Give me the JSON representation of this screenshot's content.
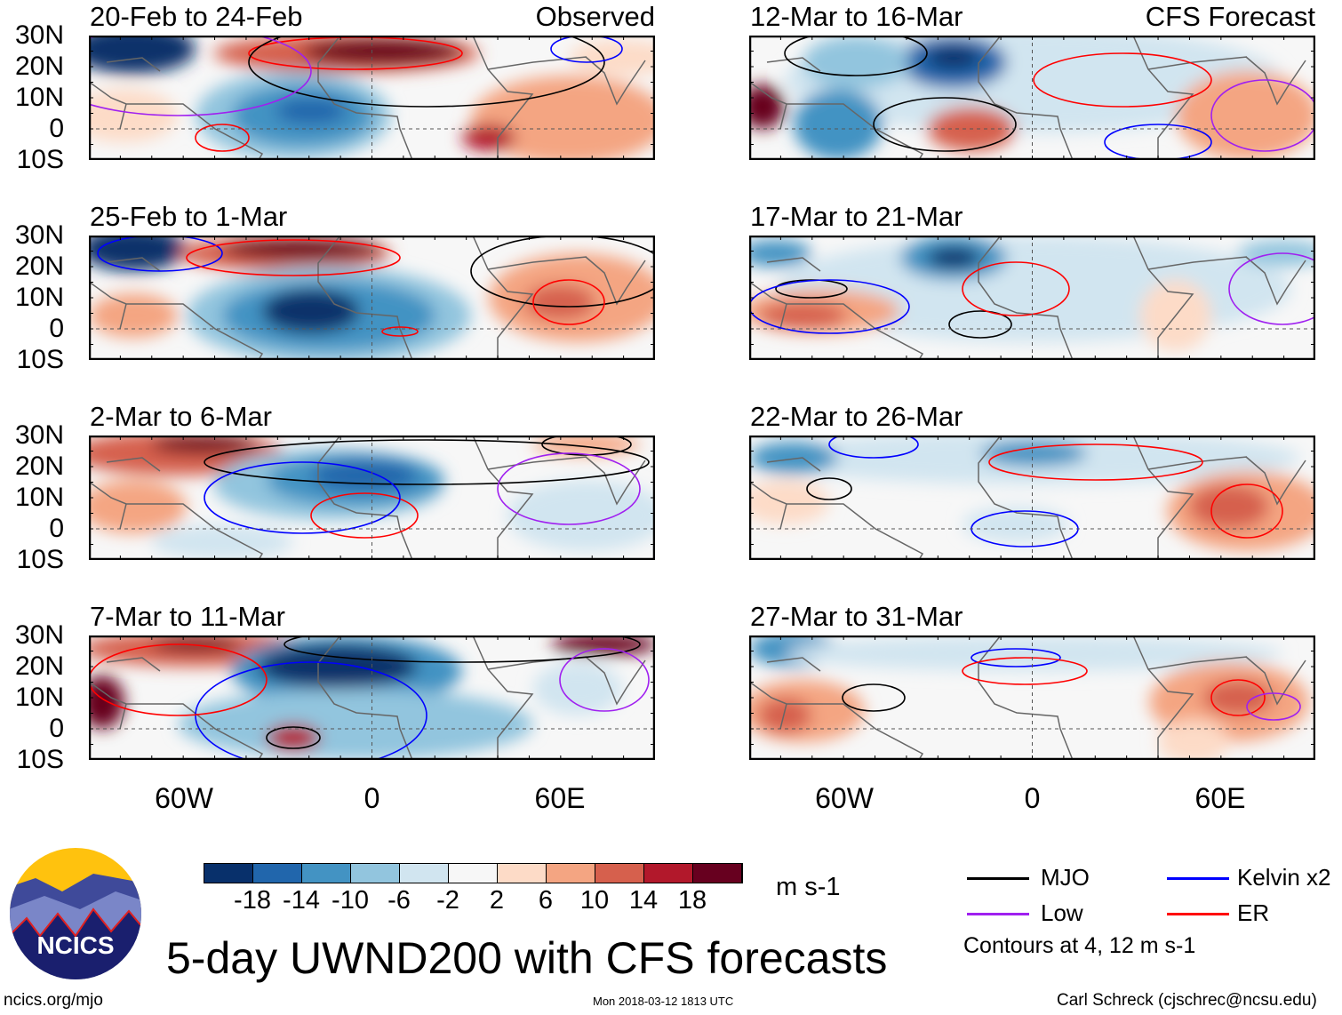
{
  "panels": [
    {
      "title": "20-Feb to 24-Feb",
      "label": "Observed"
    },
    {
      "title": "12-Mar to 16-Mar",
      "label": "CFS Forecast"
    },
    {
      "title": "25-Feb to 1-Mar"
    },
    {
      "title": "17-Mar to 21-Mar"
    },
    {
      "title": "2-Mar to 6-Mar"
    },
    {
      "title": "22-Mar to 26-Mar"
    },
    {
      "title": "7-Mar to 11-Mar"
    },
    {
      "title": "27-Mar to 31-Mar"
    }
  ],
  "lat_labels": [
    "30N",
    "20N",
    "10N",
    "0",
    "10S"
  ],
  "lon_labels": [
    "60W",
    "0",
    "60E"
  ],
  "colorbar": {
    "colors": [
      "#08306b",
      "#2166ac",
      "#4393c3",
      "#92c5de",
      "#d1e5f0",
      "#f7f7f7",
      "#fddbc7",
      "#f4a582",
      "#d6604d",
      "#b2182b",
      "#67001f"
    ],
    "ticks": [
      "-18",
      "-14",
      "-10",
      "-6",
      "-2",
      "2",
      "6",
      "10",
      "14",
      "18"
    ],
    "units": "m s-1"
  },
  "legend": {
    "items": [
      {
        "label": "MJO",
        "color": "#000000"
      },
      {
        "label": "Kelvin x2",
        "color": "#0000ff"
      },
      {
        "label": "Low",
        "color": "#a020f0"
      },
      {
        "label": "ER",
        "color": "#ff0000"
      }
    ],
    "note": "Contours at 4, 12 m s-1"
  },
  "title": "5-day UWND200 with CFS forecasts",
  "logo_text": "NCICS",
  "footer": {
    "left": "ncics.org/mjo",
    "center": "Mon 2018-03-12 1813 UTC",
    "right": "Carl Schreck (cjschrec@ncsu.edu)"
  }
}
